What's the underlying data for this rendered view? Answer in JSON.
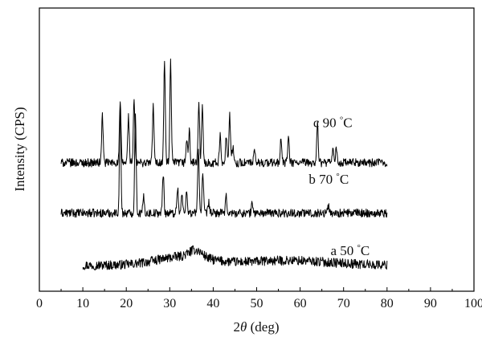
{
  "chart_data": {
    "type": "line",
    "title": "",
    "xlabel_prefix": "2",
    "xlabel_var": "θ",
    "xlabel_suffix": " (deg)",
    "ylabel": "Intensity (CPS)",
    "xlim": [
      0,
      100
    ],
    "x_ticks": [
      0,
      10,
      20,
      30,
      40,
      50,
      60,
      70,
      80,
      90,
      100
    ],
    "y_ticks_shown": false,
    "grid": false,
    "legend": "none",
    "line_color": "#000000",
    "series": [
      {
        "name": "a 50 °C",
        "label_prefix": "a 50",
        "label_unit": "C",
        "x_range": [
          10,
          80
        ],
        "baseline": 0.45,
        "noise": 0.9,
        "humps": [
          {
            "center": 33,
            "width": 6,
            "height": 1.6
          },
          {
            "center": 36,
            "width": 1.5,
            "height": 1.4
          },
          {
            "center": 57,
            "width": 10,
            "height": 0.9
          }
        ],
        "peaks": []
      },
      {
        "name": "b 70 °C",
        "label_prefix": "b 70",
        "label_unit": "C",
        "x_range": [
          5,
          80
        ],
        "baseline": 10.4,
        "noise": 0.8,
        "humps": [],
        "peaks": [
          {
            "x": 18.6,
            "h": 20.0
          },
          {
            "x": 22.1,
            "h": 19.6
          },
          {
            "x": 24.0,
            "h": 3.0
          },
          {
            "x": 28.5,
            "h": 7.5
          },
          {
            "x": 31.8,
            "h": 5.0
          },
          {
            "x": 32.8,
            "h": 3.5
          },
          {
            "x": 33.9,
            "h": 4.5
          },
          {
            "x": 36.6,
            "h": 12.5
          },
          {
            "x": 37.6,
            "h": 7.5
          },
          {
            "x": 39.0,
            "h": 2.0
          },
          {
            "x": 43.0,
            "h": 3.0
          },
          {
            "x": 49.0,
            "h": 2.0
          },
          {
            "x": 66.5,
            "h": 1.5
          }
        ]
      },
      {
        "name": "c 90 °C",
        "label_prefix": "c 90",
        "label_unit": "C",
        "x_range": [
          5,
          80
        ],
        "baseline": 20.0,
        "noise": 0.8,
        "humps": [],
        "peaks": [
          {
            "x": 14.5,
            "h": 9.0
          },
          {
            "x": 18.6,
            "h": 11.5
          },
          {
            "x": 20.5,
            "h": 9.0
          },
          {
            "x": 21.8,
            "h": 12.0
          },
          {
            "x": 26.2,
            "h": 11.0
          },
          {
            "x": 28.8,
            "h": 19.5
          },
          {
            "x": 30.2,
            "h": 19.0
          },
          {
            "x": 33.9,
            "h": 4.5
          },
          {
            "x": 34.5,
            "h": 6.0
          },
          {
            "x": 36.7,
            "h": 11.0
          },
          {
            "x": 37.5,
            "h": 10.5
          },
          {
            "x": 41.6,
            "h": 5.0
          },
          {
            "x": 43.0,
            "h": 5.5
          },
          {
            "x": 43.8,
            "h": 9.0
          },
          {
            "x": 44.5,
            "h": 3.0
          },
          {
            "x": 49.5,
            "h": 2.0
          },
          {
            "x": 55.6,
            "h": 4.5
          },
          {
            "x": 57.3,
            "h": 5.0
          },
          {
            "x": 64.0,
            "h": 7.5
          },
          {
            "x": 67.6,
            "h": 2.5
          },
          {
            "x": 68.3,
            "h": 2.5
          }
        ]
      }
    ]
  }
}
